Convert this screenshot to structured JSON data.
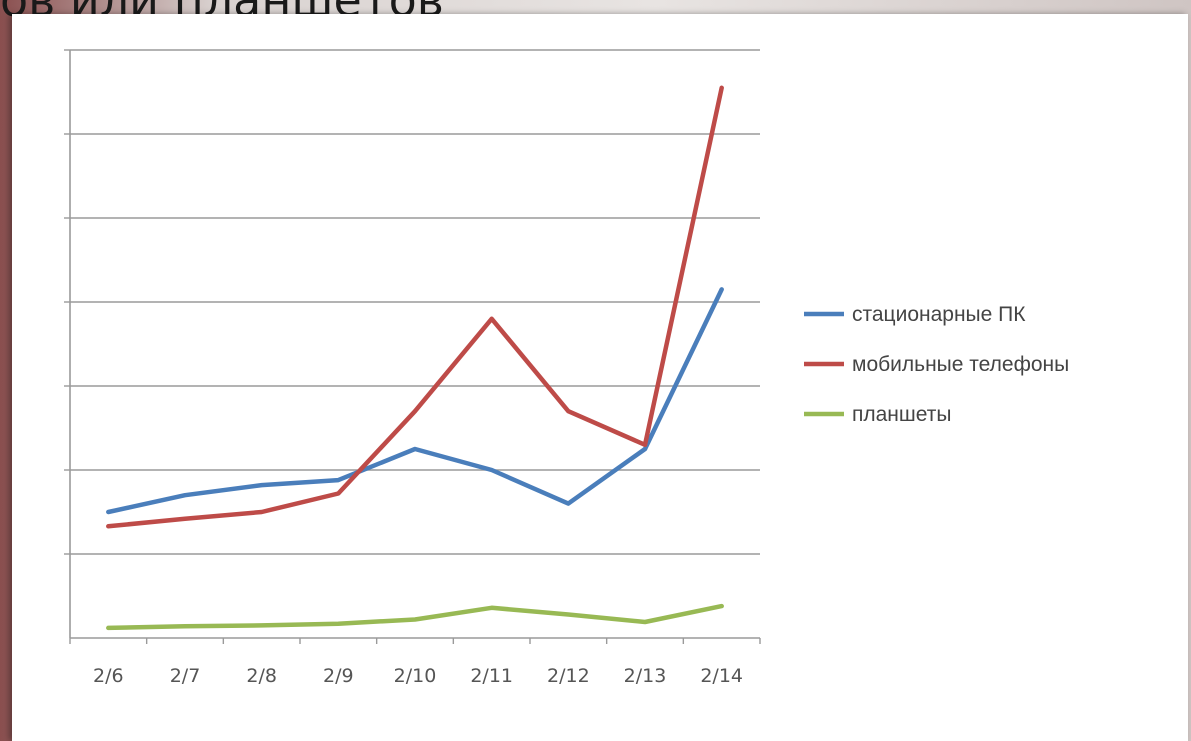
{
  "heading_text": "ов или планшетов",
  "chart_data": {
    "type": "line",
    "categories": [
      "2/6",
      "2/7",
      "2/8",
      "2/9",
      "2/10",
      "2/11",
      "2/12",
      "2/13",
      "2/14"
    ],
    "ylim": [
      0,
      7
    ],
    "y_gridlines": 7,
    "grid": true,
    "legend_position": "right",
    "series": [
      {
        "name": "стационарные ПК",
        "color": "#4a7ebb",
        "values": [
          1.5,
          1.7,
          1.82,
          1.88,
          2.25,
          2.0,
          1.6,
          2.25,
          4.15
        ]
      },
      {
        "name": "мобильные телефоны",
        "color": "#be4b48",
        "values": [
          1.33,
          1.42,
          1.5,
          1.72,
          2.7,
          3.8,
          2.7,
          2.3,
          6.55
        ]
      },
      {
        "name": "планшеты",
        "color": "#98b954",
        "values": [
          0.12,
          0.14,
          0.15,
          0.17,
          0.22,
          0.36,
          0.28,
          0.19,
          0.38
        ]
      }
    ]
  }
}
